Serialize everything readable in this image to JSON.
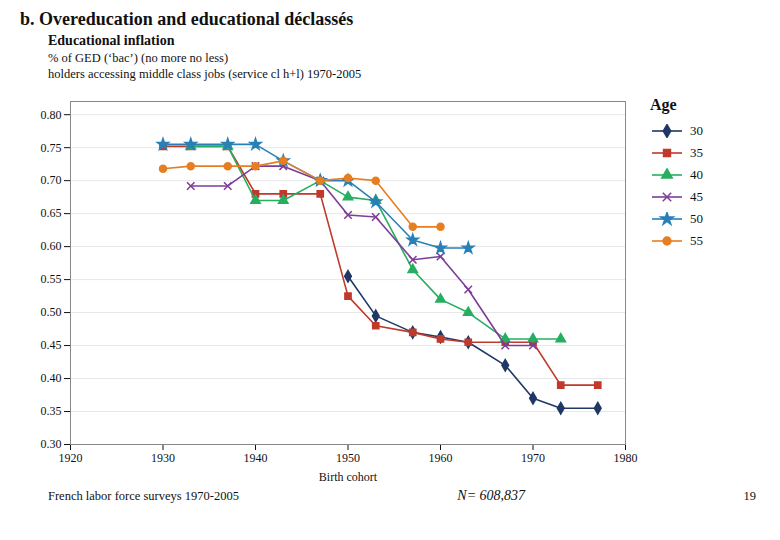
{
  "chart_data": {
    "type": "line",
    "title": "b. Overeducation and educational déclassés",
    "subtitle": "Educational inflation",
    "description": [
      "% of GED (‘bac’) (no more no less)",
      "holders accessing middle class jobs (service cl h+l) 1970-2005"
    ],
    "footer": [
      "French labor force surveys 1970-2005",
      "N= 608,837",
      "19"
    ],
    "x_label": "Birth cohort",
    "legend_title": "Age",
    "legend": "right",
    "grid": "y",
    "xlim": [
      1920,
      1980
    ],
    "xticks": [
      1920,
      1930,
      1940,
      1950,
      1960,
      1970,
      1980
    ],
    "ylim": [
      0.3,
      0.82
    ],
    "yticks": [
      {
        "value": 0.3,
        "label": "0.30"
      },
      0.35,
      {
        "value": 0.4,
        "label": "0.40"
      },
      0.45,
      {
        "value": 0.5,
        "label": "0.50"
      },
      0.55,
      {
        "value": 0.6,
        "label": "0.60"
      },
      0.65,
      {
        "value": 0.7,
        "label": "0.70"
      },
      0.75,
      {
        "value": 0.8,
        "label": "0.80"
      }
    ],
    "series": [
      {
        "name": "30",
        "color": "#1F3864",
        "marker": "diamond",
        "x": [
          1950,
          1953,
          1957,
          1960,
          1963,
          1967,
          1970,
          1973,
          1977
        ],
        "values": [
          0.555,
          0.495,
          0.47,
          0.463,
          0.455,
          0.42,
          0.37,
          0.355,
          0.355
        ]
      },
      {
        "name": "35",
        "color": "#C0392B",
        "marker": "square",
        "x": [
          1930,
          1933,
          1937,
          1940,
          1943,
          1947,
          1950,
          1953,
          1957,
          1960,
          1963,
          1967,
          1970,
          1973,
          1977
        ],
        "values": [
          0.752,
          0.752,
          0.752,
          0.68,
          0.68,
          0.68,
          0.525,
          0.48,
          0.47,
          0.46,
          0.455,
          0.455,
          0.455,
          0.39,
          0.39
        ]
      },
      {
        "name": "40",
        "color": "#27AE60",
        "marker": "triangle",
        "x": [
          1933,
          1937,
          1940,
          1943,
          1947,
          1950,
          1953,
          1957,
          1960,
          1963,
          1967,
          1970,
          1973
        ],
        "values": [
          0.752,
          0.752,
          0.67,
          0.67,
          0.7,
          0.675,
          0.67,
          0.565,
          0.52,
          0.5,
          0.46,
          0.46,
          0.46
        ]
      },
      {
        "name": "45",
        "color": "#7D3C98",
        "marker": "times",
        "x": [
          1933,
          1937,
          1940,
          1943,
          1947,
          1950,
          1953,
          1957,
          1960,
          1963,
          1967,
          1970
        ],
        "values": [
          0.692,
          0.692,
          0.722,
          0.722,
          0.7,
          0.648,
          0.645,
          0.58,
          0.585,
          0.535,
          0.45,
          0.45
        ]
      },
      {
        "name": "50",
        "color": "#2980B9",
        "marker": "star",
        "x": [
          1930,
          1933,
          1937,
          1940,
          1943,
          1947,
          1950,
          1953,
          1957,
          1960,
          1963
        ],
        "values": [
          0.755,
          0.755,
          0.755,
          0.755,
          0.73,
          0.7,
          0.7,
          0.668,
          0.61,
          0.598,
          0.598
        ]
      },
      {
        "name": "55",
        "color": "#E67E22",
        "marker": "circle",
        "x": [
          1930,
          1933,
          1937,
          1940,
          1943,
          1947,
          1950,
          1953,
          1957,
          1960
        ],
        "values": [
          0.718,
          0.722,
          0.722,
          0.722,
          0.73,
          0.7,
          0.704,
          0.7,
          0.63,
          0.63
        ]
      }
    ]
  }
}
